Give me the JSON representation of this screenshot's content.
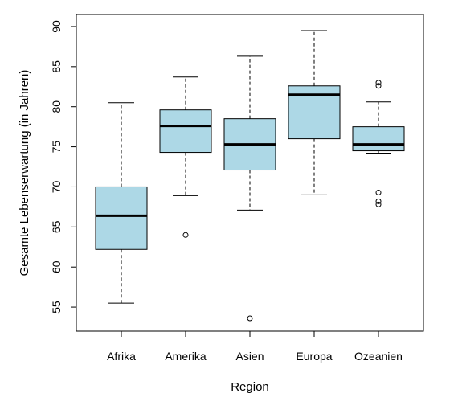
{
  "chart_data": {
    "type": "boxplot",
    "title": "",
    "xlabel": "Region",
    "ylabel": "Gesamte Lebenserwartung (in Jahren)",
    "ylim": [
      52,
      91.5
    ],
    "yticks": [
      55,
      60,
      65,
      70,
      75,
      80,
      85,
      90
    ],
    "ytick_labels": [
      "55",
      "60",
      "65",
      "70",
      "75",
      "80",
      "85",
      "90"
    ],
    "grid": false,
    "legend": "none",
    "box_color": "#add8e6",
    "categories": [
      "Afrika",
      "Amerika",
      "Asien",
      "Europa",
      "Ozeanien"
    ],
    "boxes": [
      {
        "category": "Afrika",
        "whisker_low": 55.5,
        "q1": 62.2,
        "median": 66.4,
        "q3": 70.0,
        "whisker_high": 80.5,
        "outliers": []
      },
      {
        "category": "Amerika",
        "whisker_low": 68.9,
        "q1": 74.3,
        "median": 77.6,
        "q3": 79.6,
        "whisker_high": 83.7,
        "outliers": [
          64.0
        ]
      },
      {
        "category": "Asien",
        "whisker_low": 67.1,
        "q1": 72.1,
        "median": 75.3,
        "q3": 78.5,
        "whisker_high": 86.3,
        "outliers": [
          53.6
        ]
      },
      {
        "category": "Europa",
        "whisker_low": 69.0,
        "q1": 76.0,
        "median": 81.5,
        "q3": 82.6,
        "whisker_high": 89.5,
        "outliers": []
      },
      {
        "category": "Ozeanien",
        "whisker_low": 74.2,
        "q1": 74.5,
        "median": 75.3,
        "q3": 77.5,
        "whisker_high": 80.6,
        "outliers": [
          82.6,
          83.0,
          69.3,
          68.2,
          67.8
        ]
      }
    ]
  }
}
